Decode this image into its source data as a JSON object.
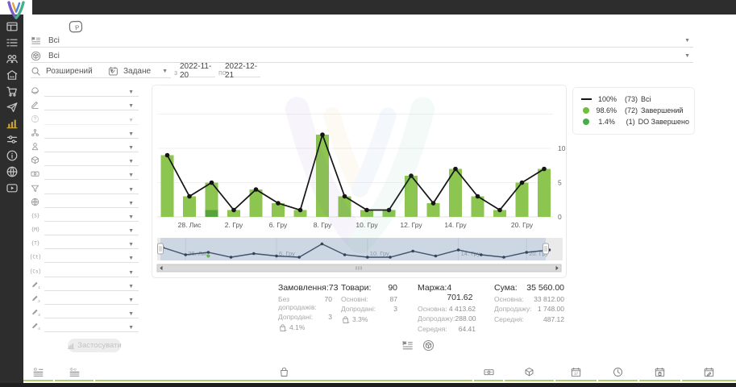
{
  "colors": {
    "topbar": "#2d2d2d",
    "accent_green_bar": "#8cc550",
    "accent_green_dark": "#57a33c",
    "active_sidebar_icon": "#c8a43a",
    "table_header_underline": "#aed06c",
    "navigator_bg": "#cdd7e3"
  },
  "header": {
    "promo_badge": "P"
  },
  "filters": {
    "category_value": "Всі",
    "product_value": "Всі",
    "search_mode": "Розширений",
    "date_mode": "Задане",
    "from_label": "з",
    "date_from": "2022-11-20",
    "to_label": "по",
    "date_to": "2022-12-21"
  },
  "sidebar": {
    "items": [
      {
        "icon": "dashboard"
      },
      {
        "icon": "list"
      },
      {
        "icon": "users"
      },
      {
        "icon": "store"
      },
      {
        "icon": "cart"
      },
      {
        "icon": "send"
      },
      {
        "icon": "chart",
        "active": true
      },
      {
        "icon": "sliders"
      },
      {
        "icon": "info"
      },
      {
        "icon": "globe"
      },
      {
        "icon": "video"
      }
    ]
  },
  "filter_panel": {
    "apply_label": "Застосувати",
    "rows": [
      {
        "icon": "planet"
      },
      {
        "icon": "pen-lines"
      },
      {
        "icon": "help",
        "disabled": true
      },
      {
        "icon": "hierarchy"
      },
      {
        "icon": "person"
      },
      {
        "icon": "package"
      },
      {
        "icon": "banknote"
      },
      {
        "icon": "funnel"
      },
      {
        "icon": "web"
      },
      {
        "icon": "tag",
        "glyph": "{S}"
      },
      {
        "icon": "tag",
        "glyph": "{M}"
      },
      {
        "icon": "tag",
        "glyph": "{T}"
      },
      {
        "icon": "tag",
        "glyph": "{Ct}"
      },
      {
        "icon": "tag",
        "glyph": "{Cs}"
      },
      {
        "icon": "pencil",
        "glyph": "1"
      },
      {
        "icon": "pencil",
        "glyph": "2"
      },
      {
        "icon": "pencil",
        "glyph": "3"
      },
      {
        "icon": "pencil",
        "glyph": "4"
      }
    ]
  },
  "chart_data": {
    "type": "bar",
    "ylim": [
      0,
      15
    ],
    "yticks": [
      0,
      5,
      10
    ],
    "grid": true,
    "legend_position": "right",
    "x_tick_labels": [
      {
        "index": 1,
        "label": "28. Лис"
      },
      {
        "index": 3,
        "label": "2. Гру"
      },
      {
        "index": 5,
        "label": "6. Гру"
      },
      {
        "index": 7,
        "label": "8. Гру"
      },
      {
        "index": 9,
        "label": "10. Гру"
      },
      {
        "index": 11,
        "label": "12. Гру"
      },
      {
        "index": 13,
        "label": "14. Гру"
      },
      {
        "index": 16,
        "label": "20. Гру"
      }
    ],
    "series": [
      {
        "name": "Всі",
        "type": "line",
        "color": "#141414",
        "values": [
          9,
          3,
          5,
          1,
          4,
          2,
          1,
          12,
          3,
          1,
          1,
          6,
          2,
          7,
          3,
          1,
          5,
          7
        ]
      },
      {
        "name": "Завершений",
        "type": "bar",
        "color": "#8cc550",
        "values": [
          9,
          3,
          4,
          1,
          4,
          2,
          1,
          12,
          3,
          1,
          1,
          6,
          2,
          7,
          3,
          1,
          5,
          7
        ]
      },
      {
        "name": "DO Завершено",
        "type": "bar-stacked-bottom",
        "color": "#57a33c",
        "values": [
          0,
          0,
          1,
          0,
          0,
          0,
          0,
          0,
          0,
          0,
          0,
          0,
          0,
          0,
          0,
          0,
          0,
          0
        ]
      }
    ],
    "legend": [
      {
        "swatch": "line",
        "color": "#141414",
        "pct": "100%",
        "count": "(73)",
        "label": "Всі"
      },
      {
        "swatch": "dot",
        "color": "#72bd3c",
        "pct": "98.6%",
        "count": "(72)",
        "label": "Завершений"
      },
      {
        "swatch": "dot",
        "color": "#47ad49",
        "pct": "1.4%",
        "count": "(1)",
        "label": "DO Завершено"
      }
    ],
    "navigator_labels": [
      {
        "index": 1,
        "label": "28. Лис"
      },
      {
        "index": 5,
        "label": "6. Гру"
      },
      {
        "index": 9,
        "label": "10. Гру"
      },
      {
        "index": 13,
        "label": "14. Гру"
      },
      {
        "index": 16,
        "label": "20. Гру"
      }
    ]
  },
  "stats": {
    "columns": [
      {
        "title": "Замовлення:",
        "value": "73",
        "rows": [
          {
            "label": "Без допродажів:",
            "value": "70"
          },
          {
            "label": "Допродані:",
            "value": "3"
          },
          {
            "icon": "bag-percent",
            "value": "4.1%"
          }
        ]
      },
      {
        "title": "Товари:",
        "value": "90",
        "rows": [
          {
            "label": "Основні:",
            "value": "87"
          },
          {
            "label": "Допродані:",
            "value": "3"
          },
          {
            "icon": "bag-percent",
            "value": "3.3%"
          }
        ]
      },
      {
        "title": "Маржа:",
        "value": "4 701.62",
        "rows": [
          {
            "label": "Основна:",
            "value": "4 413.62"
          },
          {
            "label": "Допродажу:",
            "value": "288.00"
          },
          {
            "label": "Середня:",
            "value": "64.41"
          }
        ]
      },
      {
        "title": "Сума:",
        "value": "35 560.00",
        "rows": [
          {
            "label": "Основна:",
            "value": "33 812.00"
          },
          {
            "label": "Допродажу:",
            "value": "1 748.00"
          },
          {
            "label": "Середня:",
            "value": "487.12"
          }
        ]
      }
    ]
  },
  "view_toggles": [
    {
      "icon": "flag-list"
    },
    {
      "icon": "package-circle"
    }
  ],
  "bottom_bar": {
    "columns": [
      {
        "icon": "id-list"
      },
      {
        "icon": "id-o-list"
      },
      {
        "icon": "bag"
      },
      {
        "icon": "banknote"
      },
      {
        "icon": "package"
      },
      {
        "icon": "calendar-17"
      },
      {
        "icon": "clock"
      },
      {
        "icon": "calendar-bag"
      },
      {
        "icon": "calendar-edit"
      }
    ]
  }
}
